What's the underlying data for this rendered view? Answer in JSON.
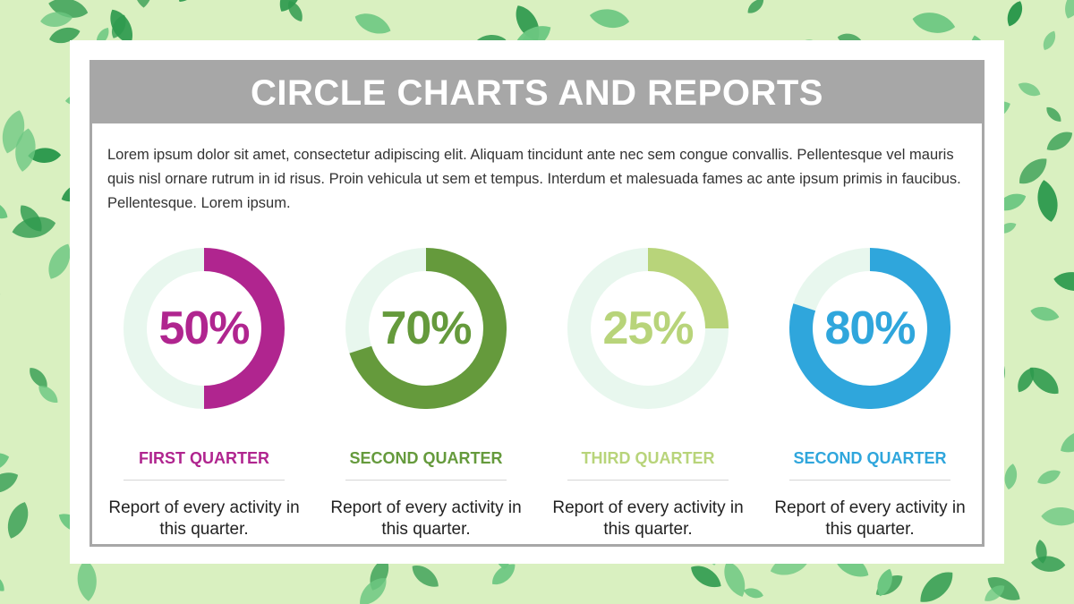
{
  "title": "CIRCLE CHARTS AND REPORTS",
  "intro": "Lorem ipsum dolor sit amet, consectetur adipiscing elit. Aliquam tincidunt ante nec sem congue convallis. Pellentesque vel mauris quis nisl ornare rutrum in id risus. Proin vehicula ut sem et tempus. Interdum et malesuada fames ac ante ipsum primis in faucibus. Pellentesque. Lorem ipsum.",
  "colors": {
    "track": "#e8f7ee",
    "frame": "#a7a7a7",
    "leaf_dark": "#2e9a4e",
    "leaf_light": "#6cc781",
    "bg": "#d9f0c0"
  },
  "chart_data": {
    "type": "donut",
    "series": [
      {
        "percent_label": "50%",
        "value": 50,
        "label": "FIRST QUARTER",
        "description": "Report of every activity in this quarter.",
        "color": "#b0258f"
      },
      {
        "percent_label": "70%",
        "value": 70,
        "label": "SECOND QUARTER",
        "description": "Report of every activity in this quarter.",
        "color": "#659a3c"
      },
      {
        "percent_label": "25%",
        "value": 25,
        "label": "THIRD QUARTER",
        "description": "Report of every activity in this quarter.",
        "color": "#b8d47a"
      },
      {
        "percent_label": "80%",
        "value": 80,
        "label": "SECOND QUARTER",
        "description": "Report of every activity in this quarter.",
        "color": "#2fa6dc"
      }
    ]
  }
}
